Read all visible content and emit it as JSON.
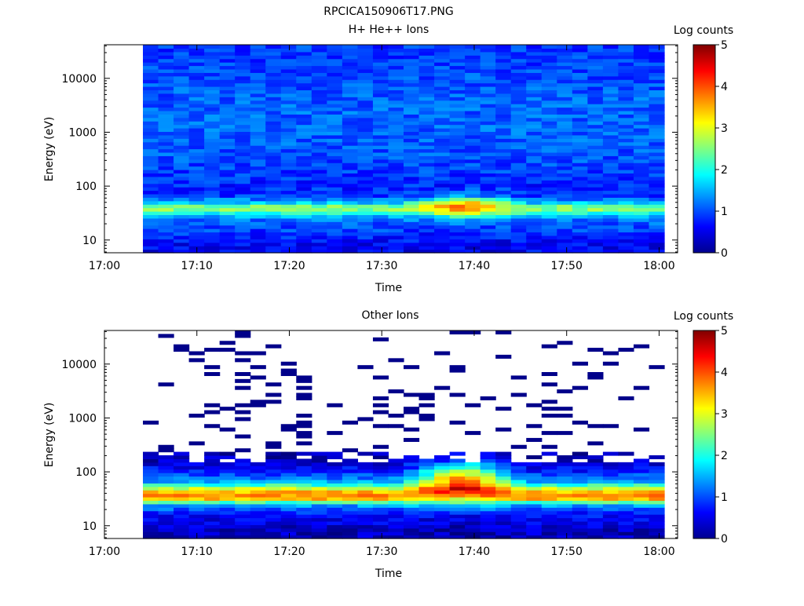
{
  "figure_title": "RPCICA150906T17.PNG",
  "colorbar": {
    "label": "Log counts",
    "ticks": [
      "0",
      "1",
      "2",
      "3",
      "4",
      "5"
    ],
    "range": [
      0,
      5
    ]
  },
  "chart_data": [
    {
      "type": "heatmap",
      "title": "H+ He++ Ions",
      "xlabel": "Time",
      "ylabel": "Energy (eV)",
      "x_ticks": [
        "17:00",
        "17:10",
        "17:20",
        "17:30",
        "17:40",
        "17:50",
        "18:00"
      ],
      "y_ticks": [
        "10",
        "100",
        "1000",
        "10000"
      ],
      "y_scale": "log",
      "xlim": [
        "17:00",
        "18:02"
      ],
      "ylim": [
        5.8,
        42000
      ],
      "columns": [
        "17:04-17:06",
        "17:06-17:07",
        "17:07-17:09",
        "17:09-17:11",
        "17:11-17:12",
        "17:12-17:14",
        "17:14-17:16",
        "17:16-17:17",
        "17:17-17:19",
        "17:19-17:21",
        "17:21-17:22",
        "17:22-17:24",
        "17:24-17:26",
        "17:26-17:27",
        "17:27-17:29",
        "17:29-17:31",
        "17:31-17:32",
        "17:32-17:34",
        "17:34-17:36",
        "17:36-17:37",
        "17:37-17:39",
        "17:39-17:41",
        "17:41-17:42",
        "17:42-17:44",
        "17:44-17:46",
        "17:46-17:47",
        "17:47-17:49",
        "17:49-17:51",
        "17:51-17:52",
        "17:52-17:54",
        "17:54-17:56",
        "17:56-17:57",
        "17:57-17:59",
        "17:59-18:01"
      ],
      "profile_log_counts": {
        "energy_ev": [
          8,
          12,
          18,
          25,
          32,
          40,
          50,
          65,
          100,
          300,
          1000,
          3000,
          10000,
          30000
        ],
        "typical": [
          0.6,
          0.8,
          1.0,
          1.2,
          2.0,
          2.8,
          1.6,
          0.9,
          0.8,
          1.0,
          1.1,
          1.1,
          1.0,
          0.9
        ],
        "peak_17_35_17_45": [
          0.5,
          0.7,
          1.0,
          1.5,
          3.2,
          4.0,
          3.5,
          1.5,
          0.8,
          1.0,
          1.1,
          1.1,
          1.0,
          0.9
        ]
      }
    },
    {
      "type": "heatmap",
      "title": "Other Ions",
      "xlabel": "Time",
      "ylabel": "Energy (eV)",
      "x_ticks": [
        "17:00",
        "17:10",
        "17:20",
        "17:30",
        "17:40",
        "17:50",
        "18:00"
      ],
      "y_ticks": [
        "10",
        "100",
        "1000",
        "10000"
      ],
      "y_scale": "log",
      "xlim": [
        "17:00",
        "18:02"
      ],
      "ylim": [
        5.8,
        42000
      ],
      "profile_log_counts": {
        "energy_ev": [
          8,
          12,
          18,
          25,
          32,
          40,
          50,
          65,
          100,
          150,
          200
        ],
        "typical": [
          0.3,
          0.5,
          0.8,
          1.5,
          3.5,
          3.8,
          2.8,
          1.5,
          0.8,
          0.4,
          0.2
        ],
        "peak_17_35_17_45": [
          0.2,
          0.4,
          0.8,
          2.0,
          3.0,
          4.2,
          4.8,
          4.5,
          3.0,
          1.5,
          0.5
        ]
      },
      "sparse_high_energy": "isolated single-count lines (log ≈ 0) between 200 eV and 40000 eV"
    }
  ]
}
